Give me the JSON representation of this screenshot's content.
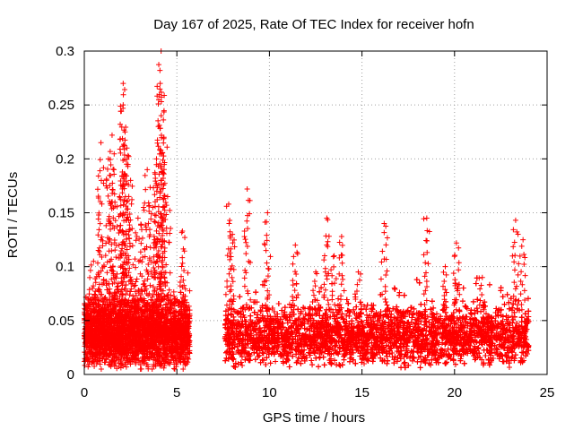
{
  "chart_data": {
    "type": "scatter",
    "title": "Day 167 of 2025, Rate Of TEC Index for receiver hofn",
    "xlabel": "GPS time / hours",
    "ylabel": "ROTI / TECUs",
    "xlim": [
      0,
      25
    ],
    "ylim": [
      0,
      0.3
    ],
    "xticks": [
      0,
      5,
      10,
      15,
      20,
      25
    ],
    "xtick_labels": [
      "0",
      "5",
      "10",
      "15",
      "20",
      "25"
    ],
    "yticks": [
      0,
      0.05,
      0.1,
      0.15,
      0.2,
      0.25,
      0.3
    ],
    "ytick_labels": [
      "0",
      "0.05",
      "0.1",
      "0.15",
      "0.2",
      "0.25",
      "0.3"
    ],
    "grid": true,
    "marker": "+",
    "color": "#ff0000",
    "series": [
      {
        "name": "ROTI",
        "segments": [
          {
            "x_start": 0.0,
            "x_end": 5.7,
            "baseline": 0.038,
            "spread": 0.035
          },
          {
            "x_start": 7.6,
            "x_end": 24.0,
            "baseline": 0.035,
            "spread": 0.03
          }
        ],
        "peaks": [
          {
            "x": 0.5,
            "y": 0.105
          },
          {
            "x": 0.9,
            "y": 0.125
          },
          {
            "x": 0.9,
            "y": 0.215
          },
          {
            "x": 1.3,
            "y": 0.2
          },
          {
            "x": 1.5,
            "y": 0.222
          },
          {
            "x": 1.6,
            "y": 0.19
          },
          {
            "x": 1.9,
            "y": 0.165
          },
          {
            "x": 2.1,
            "y": 0.27
          },
          {
            "x": 2.1,
            "y": 0.25
          },
          {
            "x": 2.2,
            "y": 0.225
          },
          {
            "x": 2.3,
            "y": 0.21
          },
          {
            "x": 2.5,
            "y": 0.18
          },
          {
            "x": 2.9,
            "y": 0.145
          },
          {
            "x": 3.2,
            "y": 0.155
          },
          {
            "x": 3.4,
            "y": 0.19
          },
          {
            "x": 3.7,
            "y": 0.155
          },
          {
            "x": 3.9,
            "y": 0.2
          },
          {
            "x": 4.0,
            "y": 0.23
          },
          {
            "x": 4.1,
            "y": 0.27
          },
          {
            "x": 4.15,
            "y": 0.3
          },
          {
            "x": 4.3,
            "y": 0.22
          },
          {
            "x": 4.5,
            "y": 0.165
          },
          {
            "x": 5.3,
            "y": 0.133
          },
          {
            "x": 7.8,
            "y": 0.158
          },
          {
            "x": 8.0,
            "y": 0.13
          },
          {
            "x": 8.8,
            "y": 0.172
          },
          {
            "x": 9.9,
            "y": 0.15
          },
          {
            "x": 11.4,
            "y": 0.12
          },
          {
            "x": 12.5,
            "y": 0.095
          },
          {
            "x": 13.1,
            "y": 0.145
          },
          {
            "x": 13.5,
            "y": 0.11
          },
          {
            "x": 13.9,
            "y": 0.128
          },
          {
            "x": 14.8,
            "y": 0.095
          },
          {
            "x": 16.2,
            "y": 0.14
          },
          {
            "x": 18.5,
            "y": 0.145
          },
          {
            "x": 19.5,
            "y": 0.1
          },
          {
            "x": 20.1,
            "y": 0.122
          },
          {
            "x": 21.5,
            "y": 0.09
          },
          {
            "x": 23.3,
            "y": 0.143
          },
          {
            "x": 23.7,
            "y": 0.125
          }
        ]
      }
    ]
  }
}
